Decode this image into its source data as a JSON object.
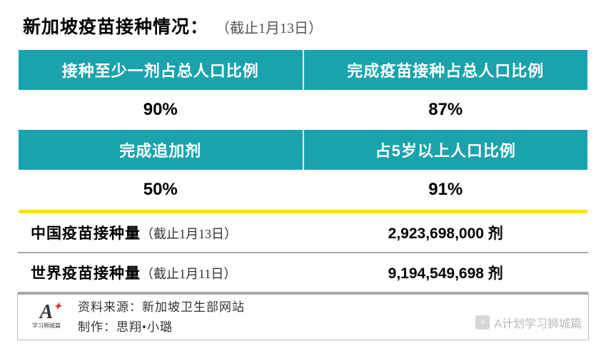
{
  "colors": {
    "teal": "#1aa3ad",
    "accent_yellow": "#f4e415",
    "divider": "#a9a9a9"
  },
  "title": {
    "bold": "新加坡疫苗接种情况：",
    "date": "（截止1月13日）"
  },
  "grid": {
    "row1": {
      "left_header": "接种至少一剂占总人口比例",
      "right_header": "完成疫苗接种占总人口比例",
      "left_value": "90%",
      "right_value": "87%"
    },
    "row2": {
      "left_header": "完成追加剂",
      "right_header": "占5岁以上人口比例",
      "left_value": "50%",
      "right_value": "91%"
    }
  },
  "doses": {
    "china": {
      "label": "中国疫苗接种量",
      "date": "（截止1月13日）",
      "value": "2,923,698,000 剂"
    },
    "world": {
      "label": "世界疫苗接种量",
      "date": "（截止1月11日）",
      "value": "9,194,549,698 剂"
    }
  },
  "footer": {
    "logo_sub": "学习狮城篇",
    "source_label": "资料来源：",
    "source_value": "新加坡卫生部网站",
    "author_label": "制作：",
    "author_value": "思翔•小璐"
  },
  "watermark": "A计划学习狮城篇"
}
